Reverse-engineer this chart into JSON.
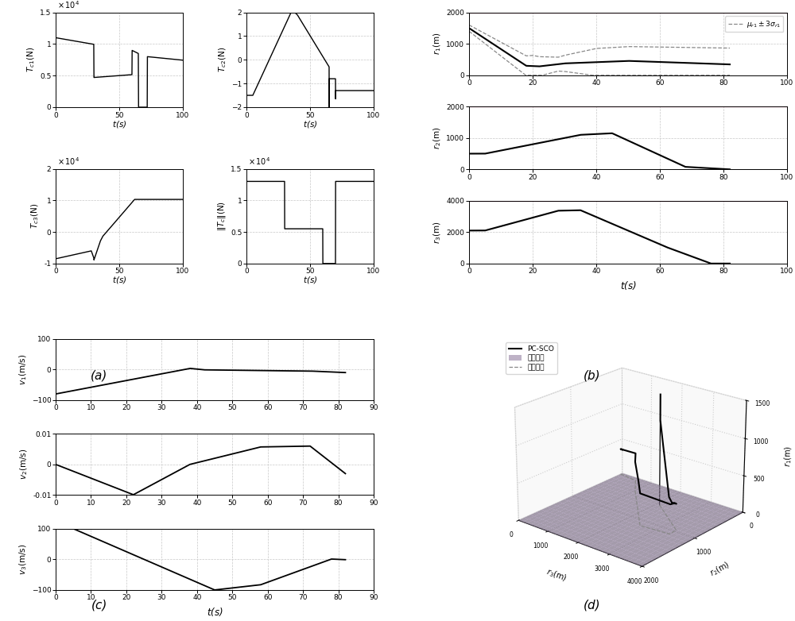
{
  "fig_width": 10.0,
  "fig_height": 7.82,
  "bg_color": "#ffffff",
  "grid_color": "#c8c8c8",
  "line_color": "#000000",
  "pink_line": "#ee3377",
  "subplot_a_label": "(a)",
  "subplot_b_label": "(b)",
  "subplot_c_label": "(c)",
  "subplot_d_label": "(d)",
  "legend_d": [
    "PC-SCO",
    "滑面约束",
    "轨迹曲线"
  ],
  "surface_color": "#9b89a8",
  "surface_edge_color": "#aaaaaa"
}
